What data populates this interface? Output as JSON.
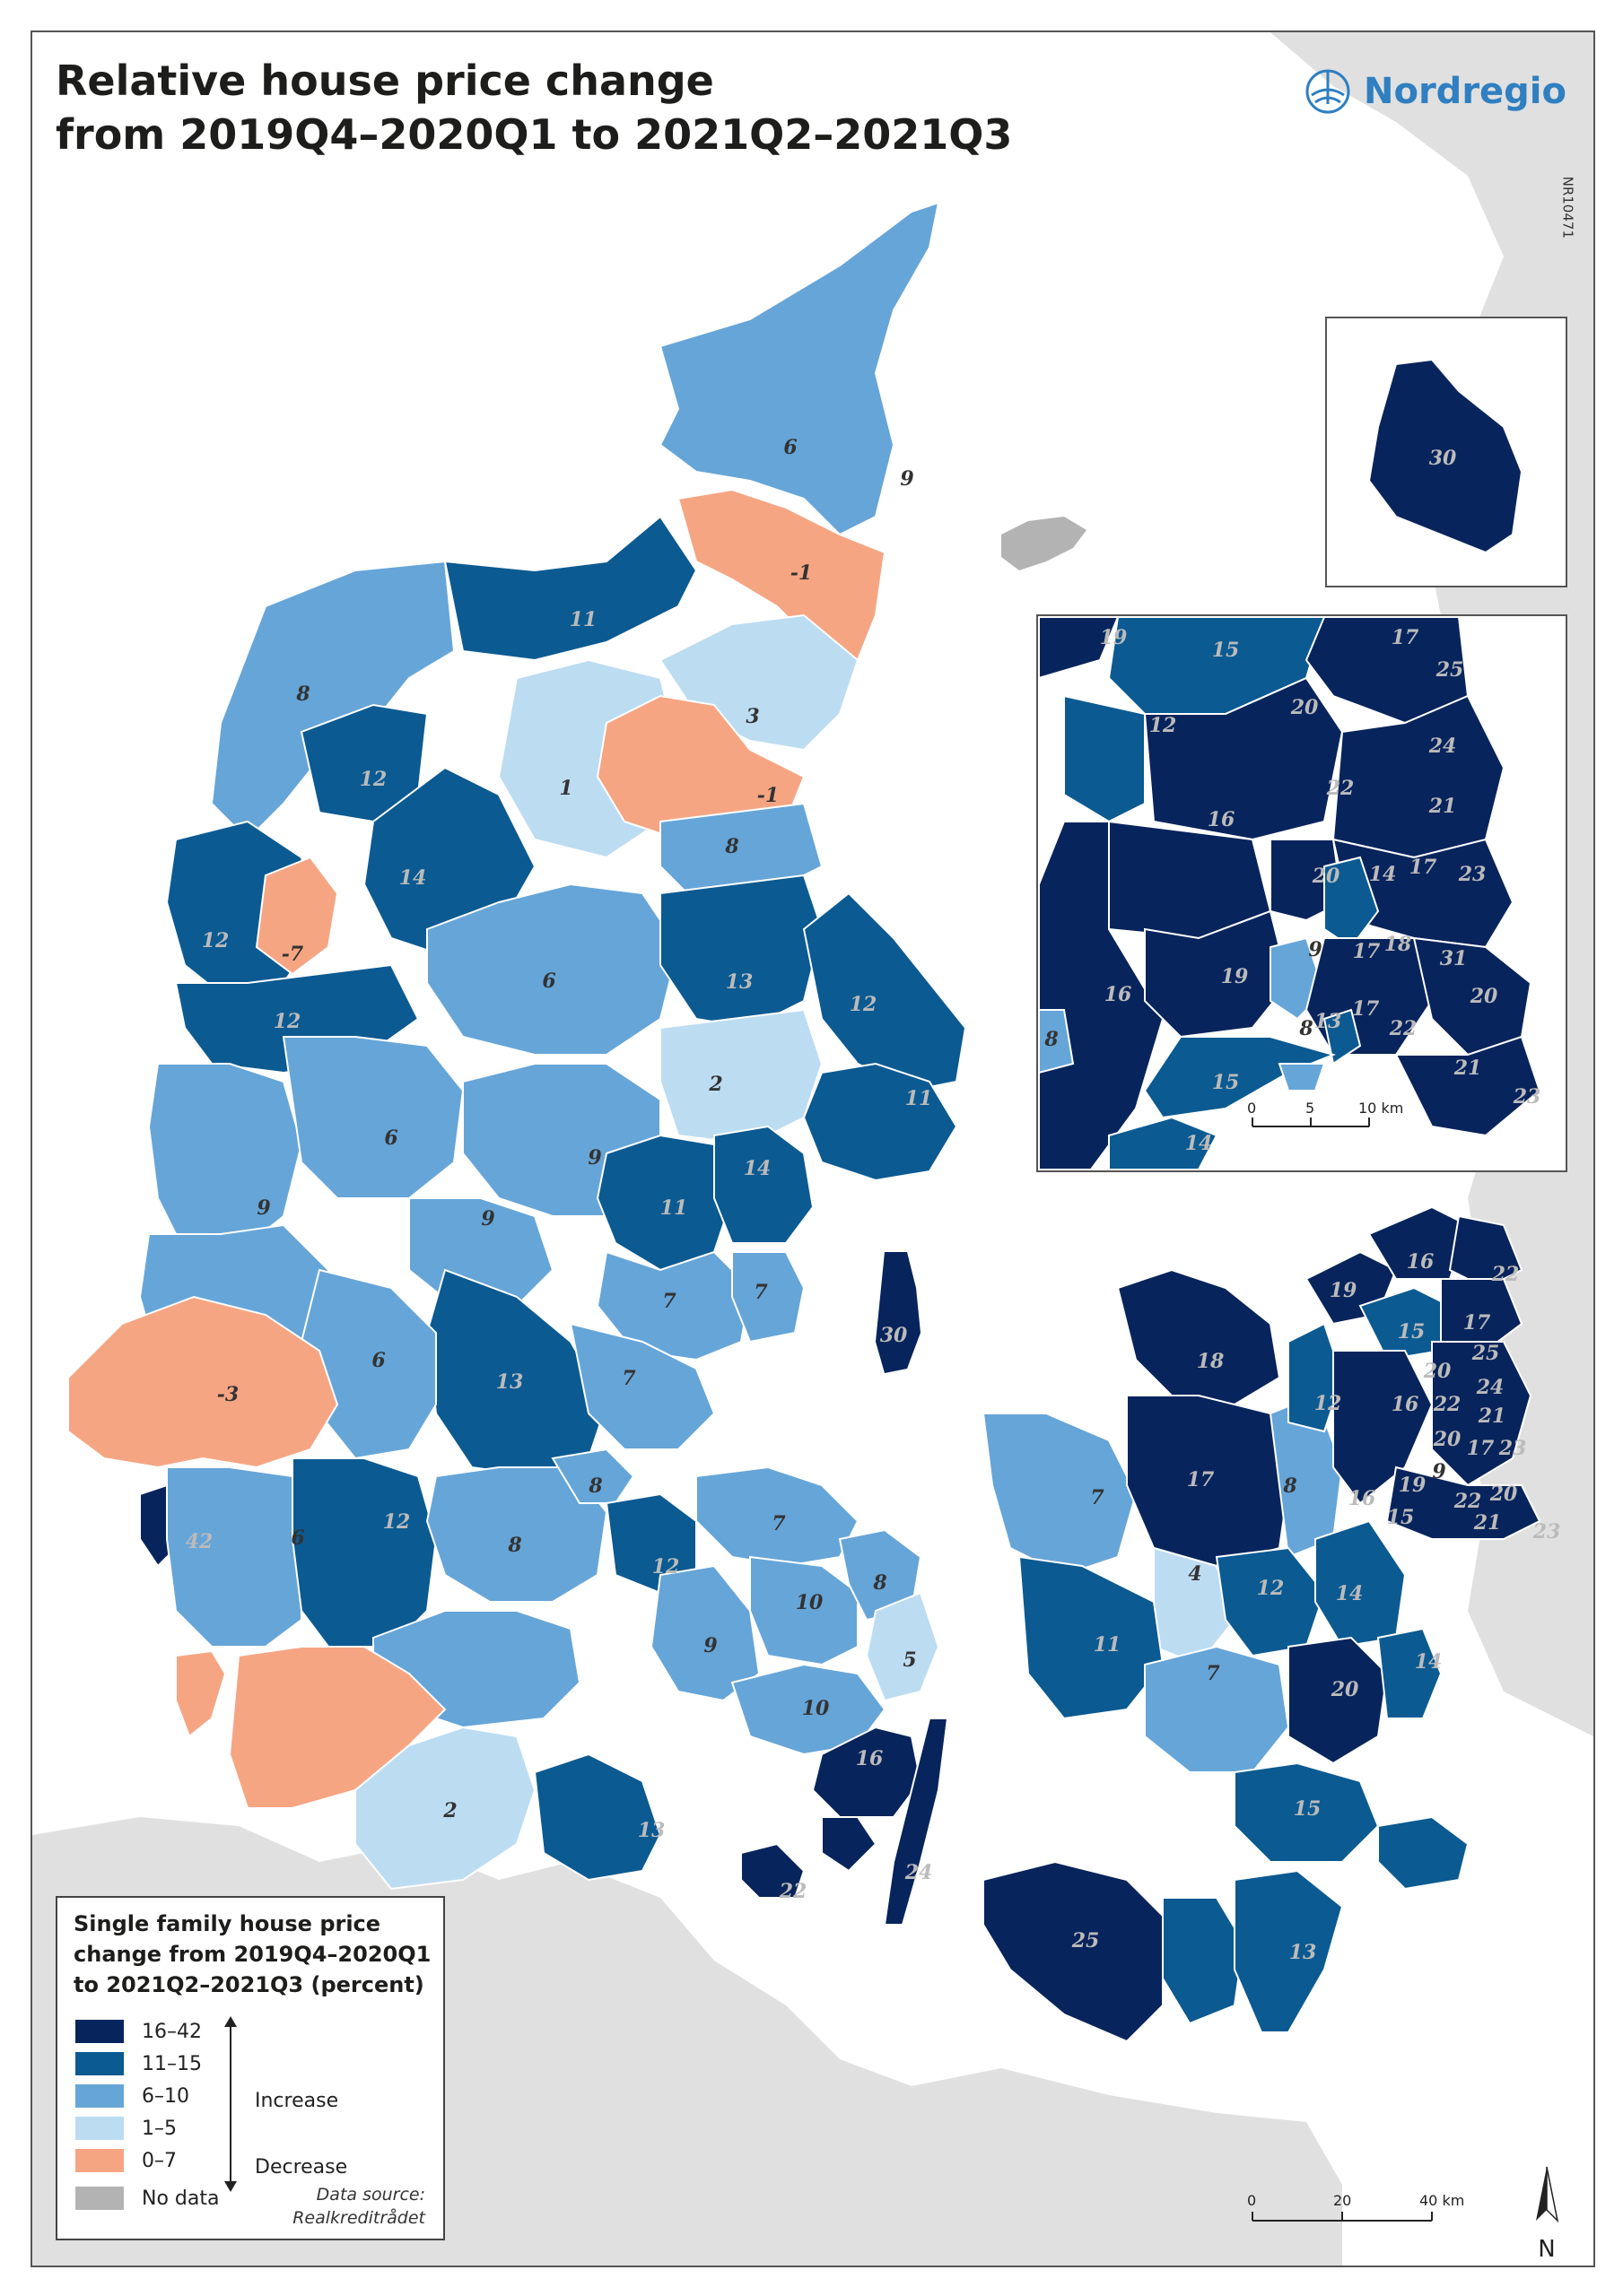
{
  "title": "Relative house price change\nfrom 2019Q4–2020Q1 to 2021Q2–2021Q3",
  "brand": "Nordregio",
  "map_ref": "NR10471",
  "colors": {
    "class_16_42": "#08245c",
    "class_11_15": "#0b5a92",
    "class_6_10": "#66a5d8",
    "class_1_5": "#bcdcf2",
    "class_decrease": "#f6a583",
    "no_data": "#b3b3b3",
    "sea": "#ffffff",
    "neighbour_land": "#e0e0e0",
    "border": "#ffffff"
  },
  "legend": {
    "title": "Single family house price\nchange from 2019Q4–2020Q1\nto 2021Q2–2021Q3 (percent)",
    "classes": [
      {
        "label": "16–42",
        "color": "#08245c"
      },
      {
        "label": "11–15",
        "color": "#0b5a92"
      },
      {
        "label": "6–10",
        "color": "#66a5d8"
      },
      {
        "label": "1–5",
        "color": "#bcdcf2"
      },
      {
        "label": "0–7",
        "color": "#f6a583"
      },
      {
        "label": "No data",
        "color": "#b3b3b3"
      }
    ],
    "increase_label": "Increase",
    "decrease_label": "Decrease",
    "source": "Data source:\nRealkreditrådet"
  },
  "scale_main": {
    "ticks": [
      "0",
      "20",
      "40 km"
    ]
  },
  "scale_inset": {
    "ticks": [
      "0",
      "5",
      "10 km"
    ]
  },
  "north_label": "N",
  "main_values": [
    "6",
    "9",
    "-1",
    "11",
    "8",
    "3",
    "1",
    "-1",
    "12",
    "8",
    "14",
    "12",
    "-7",
    "12",
    "6",
    "13",
    "12",
    "2",
    "11",
    "6",
    "9",
    "9",
    "14",
    "9",
    "11",
    "7",
    "7",
    "30",
    "-3",
    "6",
    "13",
    "7",
    "42",
    "6",
    "12",
    "8",
    "8",
    "12",
    "7",
    "10",
    "9",
    "8",
    "5",
    "10",
    "16",
    "2",
    "13",
    "22",
    "24",
    "18",
    "16",
    "19",
    "22",
    "17",
    "15",
    "25",
    "20",
    "12",
    "24",
    "16",
    "22",
    "21",
    "20",
    "17",
    "23",
    "7",
    "17",
    "8",
    "19",
    "9",
    "16",
    "15",
    "22",
    "20",
    "21",
    "23",
    "4",
    "12",
    "14",
    "11",
    "7",
    "20",
    "14",
    "15",
    "25",
    "13"
  ],
  "inset_values": [
    "19",
    "15",
    "17",
    "25",
    "12",
    "20",
    "24",
    "22",
    "21",
    "16",
    "20",
    "14",
    "17",
    "23",
    "9",
    "17",
    "18",
    "31",
    "19",
    "20",
    "16",
    "13",
    "17",
    "22",
    "8",
    "8",
    "15",
    "21",
    "23",
    "14"
  ],
  "bornholm_value": "30"
}
